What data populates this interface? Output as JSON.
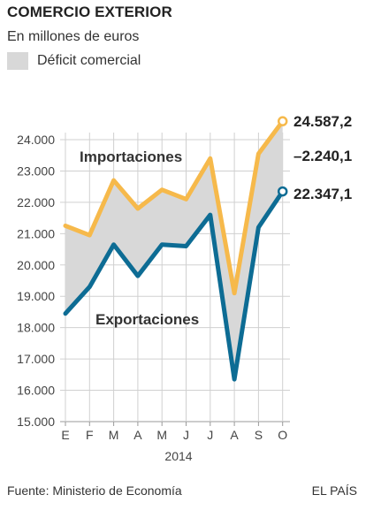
{
  "header": {
    "title": "COMERCIO EXTERIOR",
    "subtitle": "En millones de euros",
    "legend_label": "Déficit comercial"
  },
  "footer": {
    "source": "Fuente: Ministerio de Economía",
    "brand": "EL PAÍS"
  },
  "colors": {
    "importaciones": "#f6b94b",
    "exportaciones": "#0d6c94",
    "deficit_fill": "#d8d8d8",
    "gridline": "#d0d0d0",
    "axis": "#9a9a9a"
  },
  "chart_data": {
    "type": "line",
    "categories": [
      "E",
      "F",
      "M",
      "A",
      "M",
      "J",
      "J",
      "A",
      "S",
      "O"
    ],
    "xlabel": "2014",
    "ylabel": "",
    "ylim": [
      15000,
      24000
    ],
    "yticks": [
      "15.000",
      "16.000",
      "17.000",
      "18.000",
      "19.000",
      "20.000",
      "21.000",
      "22.000",
      "23.000",
      "24.000"
    ],
    "grid": true,
    "fill_between": "Déficit comercial",
    "series": [
      {
        "name": "Importaciones",
        "values": [
          21250,
          20950,
          22700,
          21800,
          22400,
          22100,
          23400,
          19100,
          23550,
          24587.2
        ],
        "end_label": "24.587,2"
      },
      {
        "name": "Exportaciones",
        "values": [
          18450,
          19300,
          20650,
          19650,
          20650,
          20600,
          21600,
          16350,
          21200,
          22347.1
        ],
        "end_label": "22.347,1"
      }
    ],
    "annotations": {
      "difference_label": "–2.240,1"
    }
  }
}
